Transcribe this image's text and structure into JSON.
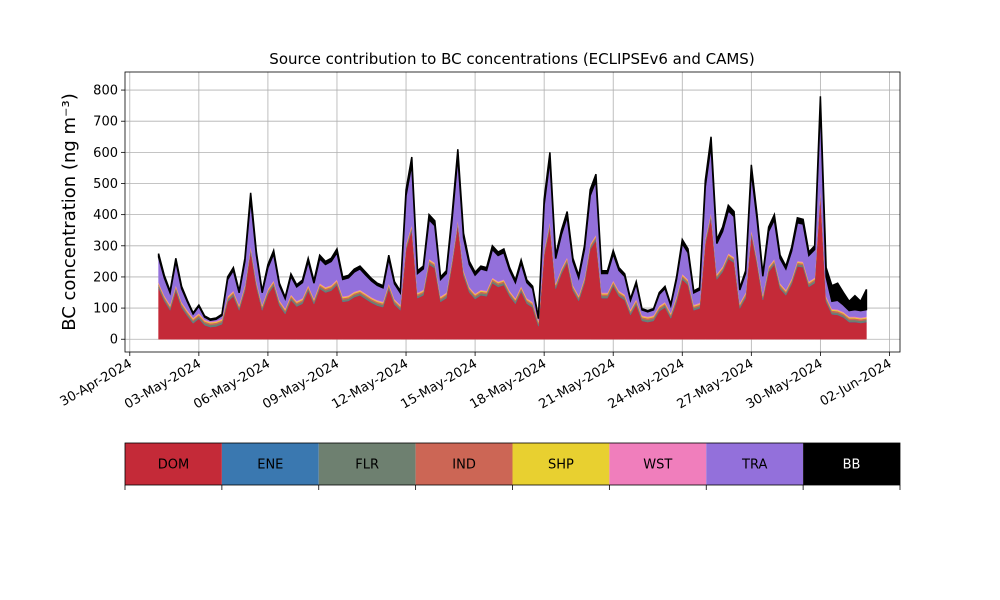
{
  "chart_data": {
    "type": "stacked_area",
    "title": "Source contribution to BC concentrations (ECLIPSEv6 and CAMS)",
    "y_label": "BC concentration (ng m⁻³)",
    "grid": true,
    "legend_position": "below",
    "x": [
      "2024-05-01T06:00",
      "2024-05-01T12:00",
      "2024-05-01T18:00",
      "2024-05-02T00:00",
      "2024-05-02T06:00",
      "2024-05-02T12:00",
      "2024-05-02T18:00",
      "2024-05-03T00:00",
      "2024-05-03T06:00",
      "2024-05-03T12:00",
      "2024-05-03T18:00",
      "2024-05-04T00:00",
      "2024-05-04T06:00",
      "2024-05-04T12:00",
      "2024-05-04T18:00",
      "2024-05-05T00:00",
      "2024-05-05T06:00",
      "2024-05-05T12:00",
      "2024-05-05T18:00",
      "2024-05-06T00:00",
      "2024-05-06T06:00",
      "2024-05-06T12:00",
      "2024-05-06T18:00",
      "2024-05-07T00:00",
      "2024-05-07T06:00",
      "2024-05-07T12:00",
      "2024-05-07T18:00",
      "2024-05-08T00:00",
      "2024-05-08T06:00",
      "2024-05-08T12:00",
      "2024-05-08T18:00",
      "2024-05-09T00:00",
      "2024-05-09T06:00",
      "2024-05-09T12:00",
      "2024-05-09T18:00",
      "2024-05-10T00:00",
      "2024-05-10T06:00",
      "2024-05-10T12:00",
      "2024-05-10T18:00",
      "2024-05-11T00:00",
      "2024-05-11T06:00",
      "2024-05-11T12:00",
      "2024-05-11T18:00",
      "2024-05-12T00:00",
      "2024-05-12T06:00",
      "2024-05-12T12:00",
      "2024-05-12T18:00",
      "2024-05-13T00:00",
      "2024-05-13T06:00",
      "2024-05-13T12:00",
      "2024-05-13T18:00",
      "2024-05-14T00:00",
      "2024-05-14T06:00",
      "2024-05-14T12:00",
      "2024-05-14T18:00",
      "2024-05-15T00:00",
      "2024-05-15T06:00",
      "2024-05-15T12:00",
      "2024-05-15T18:00",
      "2024-05-16T00:00",
      "2024-05-16T06:00",
      "2024-05-16T12:00",
      "2024-05-16T18:00",
      "2024-05-17T00:00",
      "2024-05-17T06:00",
      "2024-05-17T12:00",
      "2024-05-17T18:00",
      "2024-05-18T00:00",
      "2024-05-18T06:00",
      "2024-05-18T12:00",
      "2024-05-18T18:00",
      "2024-05-19T00:00",
      "2024-05-19T06:00",
      "2024-05-19T12:00",
      "2024-05-19T18:00",
      "2024-05-20T00:00",
      "2024-05-20T06:00",
      "2024-05-20T12:00",
      "2024-05-20T18:00",
      "2024-05-21T00:00",
      "2024-05-21T06:00",
      "2024-05-21T12:00",
      "2024-05-21T18:00",
      "2024-05-22T00:00",
      "2024-05-22T06:00",
      "2024-05-22T12:00",
      "2024-05-22T18:00",
      "2024-05-23T00:00",
      "2024-05-23T06:00",
      "2024-05-23T12:00",
      "2024-05-23T18:00",
      "2024-05-24T00:00",
      "2024-05-24T06:00",
      "2024-05-24T12:00",
      "2024-05-24T18:00",
      "2024-05-25T00:00",
      "2024-05-25T06:00",
      "2024-05-25T12:00",
      "2024-05-25T18:00",
      "2024-05-26T00:00",
      "2024-05-26T06:00",
      "2024-05-26T12:00",
      "2024-05-26T18:00",
      "2024-05-27T00:00",
      "2024-05-27T06:00",
      "2024-05-27T12:00",
      "2024-05-27T18:00",
      "2024-05-28T00:00",
      "2024-05-28T06:00",
      "2024-05-28T12:00",
      "2024-05-28T18:00",
      "2024-05-29T00:00",
      "2024-05-29T06:00",
      "2024-05-29T12:00",
      "2024-05-29T18:00",
      "2024-05-30T00:00",
      "2024-05-30T06:00",
      "2024-05-30T12:00",
      "2024-05-30T18:00",
      "2024-05-31T00:00",
      "2024-05-31T06:00",
      "2024-05-31T12:00",
      "2024-05-31T18:00",
      "2024-06-01T00:00"
    ],
    "series": [
      {
        "name": "DOM",
        "color": "#c42a38",
        "values": [
          165,
          123,
          93,
          156,
          102,
          75,
          51,
          66,
          45,
          39,
          41,
          48,
          120,
          138,
          93,
          156,
          282,
          168,
          93,
          144,
          171,
          108,
          81,
          126,
          105,
          114,
          156,
          113,
          162,
          150,
          156,
          174,
          120,
          123,
          135,
          141,
          129,
          117,
          108,
          103,
          162,
          111,
          93,
          288,
          351,
          132,
          141,
          240,
          228,
          120,
          132,
          240,
          366,
          204,
          150,
          129,
          141,
          138,
          180,
          168,
          174,
          138,
          114,
          153,
          114,
          102,
          42,
          270,
          360,
          162,
          210,
          246,
          156,
          123,
          180,
          288,
          318,
          132,
          132,
          171,
          138,
          126,
          78,
          111,
          59,
          55,
          59,
          90,
          102,
          67,
          120,
          192,
          174,
          93,
          99,
          306,
          390,
          192,
          216,
          258,
          246,
          99,
          132,
          336,
          240,
          126,
          216,
          240,
          162,
          141,
          177,
          234,
          231,
          168,
          180,
          468,
          120,
          80,
          78,
          70,
          55,
          55,
          52,
          55
        ]
      },
      {
        "name": "ENE",
        "color": "#3a78b0",
        "values": [
          1,
          1,
          1,
          1,
          1,
          1,
          1,
          1,
          1,
          1,
          1,
          1,
          1,
          1,
          1,
          1,
          1,
          1,
          1,
          1,
          1,
          1,
          1,
          1,
          1,
          1,
          1,
          1,
          1,
          1,
          1,
          1,
          1,
          1,
          1,
          1,
          1,
          1,
          1,
          1,
          1,
          1,
          1,
          1,
          1,
          1,
          1,
          1,
          1,
          1,
          1,
          1,
          1,
          1,
          1,
          1,
          1,
          1,
          1,
          1,
          1,
          1,
          1,
          1,
          1,
          1,
          1,
          1,
          1,
          1,
          1,
          1,
          1,
          1,
          1,
          1,
          1,
          1,
          1,
          1,
          1,
          1,
          1,
          1,
          1,
          1,
          1,
          1,
          1,
          1,
          1,
          1,
          1,
          1,
          1,
          1,
          1,
          1,
          1,
          1,
          1,
          1,
          1,
          1,
          1,
          1,
          1,
          1,
          1,
          1,
          1,
          1,
          1,
          1,
          1,
          1,
          1,
          1,
          1,
          1,
          1,
          1,
          1,
          1
        ]
      },
      {
        "name": "FLR",
        "color": "#6e8070",
        "values": [
          6,
          6,
          6,
          6,
          6,
          6,
          6,
          6,
          6,
          6,
          6,
          6,
          6,
          6,
          6,
          6,
          6,
          6,
          6,
          6,
          6,
          6,
          6,
          6,
          6,
          6,
          6,
          6,
          6,
          6,
          6,
          6,
          6,
          6,
          6,
          6,
          6,
          6,
          6,
          6,
          6,
          6,
          6,
          6,
          6,
          6,
          6,
          6,
          6,
          6,
          6,
          6,
          6,
          6,
          6,
          6,
          6,
          6,
          6,
          6,
          6,
          6,
          6,
          6,
          6,
          6,
          6,
          6,
          6,
          6,
          6,
          6,
          6,
          6,
          6,
          6,
          6,
          6,
          6,
          6,
          6,
          6,
          6,
          6,
          6,
          6,
          6,
          6,
          6,
          6,
          6,
          6,
          6,
          6,
          6,
          6,
          6,
          6,
          6,
          6,
          6,
          6,
          6,
          6,
          6,
          6,
          6,
          6,
          6,
          6,
          6,
          6,
          6,
          6,
          6,
          6,
          6,
          6,
          6,
          6,
          6,
          6,
          6,
          6
        ]
      },
      {
        "name": "IND",
        "color": "#cc6655",
        "values": [
          5,
          5,
          5,
          5,
          5,
          5,
          5,
          5,
          5,
          5,
          5,
          5,
          5,
          5,
          5,
          5,
          5,
          5,
          5,
          5,
          5,
          5,
          5,
          5,
          5,
          5,
          5,
          5,
          5,
          5,
          5,
          5,
          5,
          5,
          5,
          5,
          5,
          5,
          5,
          5,
          5,
          5,
          5,
          5,
          5,
          5,
          5,
          5,
          5,
          5,
          5,
          5,
          5,
          5,
          5,
          5,
          5,
          5,
          5,
          5,
          5,
          5,
          5,
          5,
          5,
          5,
          5,
          5,
          5,
          5,
          5,
          5,
          5,
          5,
          5,
          5,
          5,
          5,
          5,
          5,
          5,
          5,
          5,
          5,
          5,
          5,
          5,
          5,
          5,
          5,
          5,
          5,
          5,
          5,
          5,
          5,
          5,
          5,
          5,
          5,
          5,
          5,
          5,
          5,
          5,
          5,
          5,
          5,
          5,
          5,
          5,
          5,
          5,
          5,
          5,
          5,
          5,
          5,
          5,
          5,
          5,
          5,
          5,
          5
        ]
      },
      {
        "name": "SHP",
        "color": "#e8d030",
        "values": [
          3,
          3,
          3,
          3,
          3,
          3,
          3,
          3,
          3,
          3,
          3,
          3,
          3,
          3,
          3,
          3,
          3,
          3,
          3,
          3,
          3,
          3,
          3,
          3,
          3,
          3,
          3,
          3,
          3,
          3,
          3,
          3,
          3,
          3,
          3,
          3,
          3,
          3,
          3,
          3,
          3,
          3,
          3,
          3,
          3,
          3,
          3,
          3,
          3,
          3,
          3,
          3,
          3,
          3,
          3,
          3,
          3,
          3,
          3,
          3,
          3,
          3,
          3,
          3,
          3,
          3,
          3,
          3,
          3,
          3,
          3,
          3,
          3,
          3,
          3,
          3,
          3,
          3,
          3,
          3,
          3,
          3,
          3,
          3,
          3,
          3,
          3,
          3,
          3,
          3,
          3,
          3,
          3,
          3,
          3,
          3,
          3,
          3,
          3,
          3,
          3,
          3,
          3,
          3,
          3,
          3,
          3,
          3,
          3,
          3,
          3,
          3,
          3,
          3,
          3,
          3,
          3,
          3,
          3,
          3,
          3,
          3,
          3,
          3
        ]
      },
      {
        "name": "WST",
        "color": "#f07ebc",
        "values": [
          3,
          3,
          3,
          3,
          3,
          3,
          3,
          3,
          3,
          3,
          3,
          3,
          3,
          3,
          3,
          3,
          3,
          3,
          3,
          3,
          3,
          3,
          3,
          3,
          3,
          3,
          3,
          3,
          3,
          3,
          3,
          3,
          3,
          3,
          3,
          3,
          3,
          3,
          3,
          3,
          3,
          3,
          3,
          3,
          3,
          3,
          3,
          3,
          3,
          3,
          3,
          3,
          3,
          3,
          3,
          3,
          3,
          3,
          3,
          3,
          3,
          3,
          3,
          3,
          3,
          3,
          3,
          3,
          3,
          3,
          3,
          3,
          3,
          3,
          3,
          3,
          3,
          3,
          3,
          3,
          3,
          3,
          3,
          3,
          3,
          3,
          3,
          3,
          3,
          3,
          3,
          3,
          3,
          3,
          3,
          3,
          3,
          3,
          3,
          3,
          3,
          3,
          3,
          3,
          3,
          3,
          3,
          3,
          3,
          3,
          3,
          3,
          3,
          3,
          3,
          3,
          3,
          3,
          3,
          3,
          3,
          3,
          3,
          3
        ]
      },
      {
        "name": "TRA",
        "color": "#9370db",
        "values": [
          81,
          56,
          38,
          76,
          43,
          27,
          12,
          22,
          8,
          4,
          5,
          10,
          54,
          65,
          38,
          76,
          151,
          83,
          38,
          68,
          85,
          47,
          31,
          58,
          45,
          50,
          76,
          49,
          79,
          72,
          76,
          86,
          54,
          56,
          63,
          67,
          59,
          52,
          47,
          44,
          79,
          49,
          38,
          155,
          193,
          61,
          67,
          126,
          119,
          54,
          61,
          126,
          202,
          104,
          72,
          59,
          67,
          65,
          90,
          83,
          86,
          65,
          50,
          74,
          50,
          43,
          6,
          144,
          198,
          79,
          108,
          130,
          76,
          56,
          90,
          155,
          173,
          61,
          61,
          85,
          65,
          58,
          29,
          49,
          17,
          15,
          17,
          36,
          43,
          23,
          54,
          97,
          86,
          38,
          41,
          166,
          216,
          97,
          112,
          137,
          130,
          41,
          61,
          184,
          126,
          58,
          112,
          126,
          79,
          67,
          88,
          122,
          121,
          83,
          90,
          263,
          62,
          24,
          29,
          22,
          19,
          22,
          22,
          22
        ]
      },
      {
        "name": "BB",
        "color": "#000000",
        "values": [
          11,
          8,
          6,
          10,
          7,
          5,
          4,
          4,
          4,
          4,
          4,
          4,
          8,
          9,
          6,
          10,
          19,
          11,
          6,
          10,
          11,
          7,
          5,
          8,
          7,
          8,
          10,
          8,
          11,
          10,
          10,
          12,
          8,
          8,
          9,
          9,
          9,
          8,
          7,
          7,
          11,
          7,
          6,
          19,
          23,
          9,
          9,
          16,
          15,
          8,
          9,
          16,
          24,
          14,
          10,
          9,
          9,
          9,
          12,
          11,
          12,
          9,
          8,
          10,
          8,
          7,
          4,
          18,
          24,
          11,
          14,
          16,
          10,
          8,
          12,
          19,
          21,
          9,
          9,
          11,
          9,
          8,
          5,
          7,
          4,
          4,
          4,
          6,
          7,
          4,
          8,
          13,
          12,
          6,
          7,
          20,
          26,
          13,
          14,
          17,
          16,
          7,
          9,
          22,
          16,
          8,
          14,
          16,
          11,
          9,
          12,
          16,
          15,
          11,
          12,
          31,
          30,
          50,
          55,
          40,
          30,
          45,
          30,
          65
        ]
      }
    ],
    "xlim": [
      "2024-04-29T19:00",
      "2024-06-02T11:00"
    ],
    "xticks": [
      {
        "value": "2024-04-30",
        "label": "30-Apr-2024"
      },
      {
        "value": "2024-05-03",
        "label": "03-May-2024"
      },
      {
        "value": "2024-05-06",
        "label": "06-May-2024"
      },
      {
        "value": "2024-05-09",
        "label": "09-May-2024"
      },
      {
        "value": "2024-05-12",
        "label": "12-May-2024"
      },
      {
        "value": "2024-05-15",
        "label": "15-May-2024"
      },
      {
        "value": "2024-05-18",
        "label": "18-May-2024"
      },
      {
        "value": "2024-05-21",
        "label": "21-May-2024"
      },
      {
        "value": "2024-05-24",
        "label": "24-May-2024"
      },
      {
        "value": "2024-05-27",
        "label": "27-May-2024"
      },
      {
        "value": "2024-05-30",
        "label": "30-May-2024"
      },
      {
        "value": "2024-06-02",
        "label": "02-Jun-2024"
      }
    ],
    "ylim": [
      -41,
      858
    ],
    "yticks": [
      0,
      100,
      200,
      300,
      400,
      500,
      600,
      700,
      800
    ]
  }
}
